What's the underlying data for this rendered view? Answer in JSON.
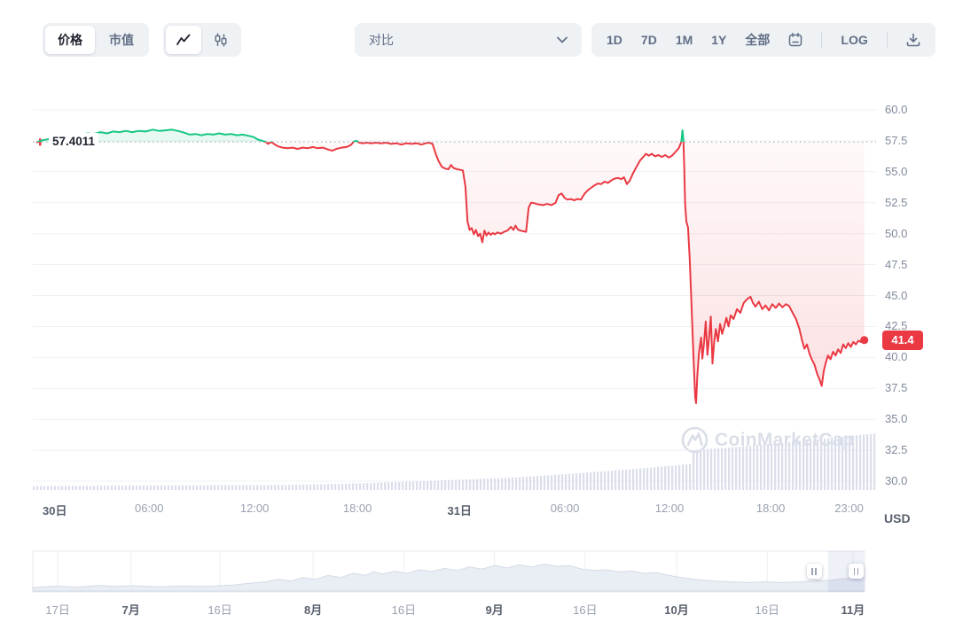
{
  "toolbar": {
    "metric_tabs": [
      {
        "label": "价格",
        "active": true
      },
      {
        "label": "市值",
        "active": false
      }
    ],
    "chart_types": [
      {
        "name": "line",
        "active": true
      },
      {
        "name": "candlestick",
        "active": false
      }
    ],
    "compare_label": "对比",
    "range_buttons": [
      "1D",
      "7D",
      "1M",
      "1Y",
      "全部"
    ],
    "log_label": "LOG"
  },
  "chart": {
    "reference_price_label": "57.4011",
    "last_price_label": "41.4",
    "unit_label": "USD",
    "watermark": "CoinMarketCap"
  },
  "chart_data": {
    "type": "line",
    "ylabel": "USD",
    "y_range": [
      30,
      60
    ],
    "y_ticks": [
      60.0,
      57.5,
      55.0,
      52.5,
      50.0,
      47.5,
      45.0,
      42.5,
      40.0,
      37.5,
      35.0,
      32.5,
      30.0
    ],
    "baseline": 57.4011,
    "last_price": 41.4,
    "grid": true,
    "x_ticks": [
      {
        "label": "30日",
        "t": 0.026,
        "bold": true
      },
      {
        "label": "06:00",
        "t": 0.138
      },
      {
        "label": "12:00",
        "t": 0.263
      },
      {
        "label": "18:00",
        "t": 0.385
      },
      {
        "label": "31日",
        "t": 0.506,
        "bold": true
      },
      {
        "label": "06:00",
        "t": 0.631
      },
      {
        "label": "12:00",
        "t": 0.755
      },
      {
        "label": "18:00",
        "t": 0.875
      },
      {
        "label": "23:00",
        "t": 0.968
      }
    ],
    "series": [
      [
        0.005,
        57.38
      ],
      [
        0.012,
        57.55
      ],
      [
        0.02,
        57.65
      ],
      [
        0.028,
        57.6
      ],
      [
        0.035,
        57.8
      ],
      [
        0.042,
        57.75
      ],
      [
        0.05,
        57.95
      ],
      [
        0.058,
        58.0
      ],
      [
        0.065,
        58.1
      ],
      [
        0.072,
        58.05
      ],
      [
        0.08,
        58.2
      ],
      [
        0.088,
        58.1
      ],
      [
        0.095,
        58.25
      ],
      [
        0.103,
        58.2
      ],
      [
        0.11,
        58.3
      ],
      [
        0.118,
        58.2
      ],
      [
        0.126,
        58.3
      ],
      [
        0.134,
        58.25
      ],
      [
        0.142,
        58.4
      ],
      [
        0.15,
        58.3
      ],
      [
        0.158,
        58.35
      ],
      [
        0.165,
        58.4
      ],
      [
        0.172,
        58.3
      ],
      [
        0.18,
        58.15
      ],
      [
        0.186,
        58.0
      ],
      [
        0.193,
        58.05
      ],
      [
        0.2,
        57.95
      ],
      [
        0.207,
        58.05
      ],
      [
        0.214,
        58.0
      ],
      [
        0.221,
        58.1
      ],
      [
        0.228,
        58.0
      ],
      [
        0.235,
        58.05
      ],
      [
        0.242,
        57.95
      ],
      [
        0.249,
        58.0
      ],
      [
        0.256,
        57.9
      ],
      [
        0.262,
        57.8
      ],
      [
        0.267,
        57.6
      ],
      [
        0.272,
        57.5
      ],
      [
        0.276,
        57.42
      ],
      [
        0.279,
        57.25
      ],
      [
        0.283,
        57.4
      ],
      [
        0.287,
        57.2
      ],
      [
        0.291,
        57.05
      ],
      [
        0.296,
        56.95
      ],
      [
        0.302,
        56.9
      ],
      [
        0.308,
        56.95
      ],
      [
        0.314,
        56.85
      ],
      [
        0.32,
        56.95
      ],
      [
        0.326,
        56.9
      ],
      [
        0.332,
        57.0
      ],
      [
        0.338,
        56.9
      ],
      [
        0.344,
        56.95
      ],
      [
        0.35,
        56.8
      ],
      [
        0.355,
        56.7
      ],
      [
        0.36,
        56.85
      ],
      [
        0.366,
        56.95
      ],
      [
        0.372,
        57.0
      ],
      [
        0.377,
        57.15
      ],
      [
        0.381,
        57.45
      ],
      [
        0.384,
        57.5
      ],
      [
        0.387,
        57.35
      ],
      [
        0.391,
        57.3
      ],
      [
        0.396,
        57.35
      ],
      [
        0.401,
        57.3
      ],
      [
        0.407,
        57.35
      ],
      [
        0.413,
        57.3
      ],
      [
        0.419,
        57.35
      ],
      [
        0.425,
        57.25
      ],
      [
        0.431,
        57.3
      ],
      [
        0.437,
        57.2
      ],
      [
        0.443,
        57.3
      ],
      [
        0.449,
        57.25
      ],
      [
        0.455,
        57.3
      ],
      [
        0.461,
        57.2
      ],
      [
        0.466,
        57.3
      ],
      [
        0.47,
        57.35
      ],
      [
        0.474,
        57.25
      ],
      [
        0.478,
        56.4
      ],
      [
        0.481,
        55.9
      ],
      [
        0.485,
        55.4
      ],
      [
        0.489,
        55.25
      ],
      [
        0.493,
        55.2
      ],
      [
        0.496,
        55.55
      ],
      [
        0.499,
        55.3
      ],
      [
        0.503,
        55.2
      ],
      [
        0.507,
        55.15
      ],
      [
        0.51,
        55.1
      ],
      [
        0.513,
        53.8
      ],
      [
        0.5155,
        51.0
      ],
      [
        0.518,
        50.3
      ],
      [
        0.5205,
        50.45
      ],
      [
        0.523,
        49.95
      ],
      [
        0.5255,
        50.3
      ],
      [
        0.528,
        49.8
      ],
      [
        0.5305,
        50.0
      ],
      [
        0.533,
        49.3
      ],
      [
        0.5355,
        50.25
      ],
      [
        0.538,
        49.85
      ],
      [
        0.5405,
        50.1
      ],
      [
        0.543,
        49.9
      ],
      [
        0.5455,
        50.05
      ],
      [
        0.548,
        49.95
      ],
      [
        0.551,
        50.1
      ],
      [
        0.555,
        50.0
      ],
      [
        0.559,
        50.15
      ],
      [
        0.563,
        50.25
      ],
      [
        0.567,
        50.55
      ],
      [
        0.57,
        50.3
      ],
      [
        0.5725,
        50.65
      ],
      [
        0.575,
        50.35
      ],
      [
        0.578,
        50.25
      ],
      [
        0.5815,
        50.2
      ],
      [
        0.585,
        50.15
      ],
      [
        0.588,
        52.1
      ],
      [
        0.591,
        52.5
      ],
      [
        0.595,
        52.45
      ],
      [
        0.6,
        52.35
      ],
      [
        0.605,
        52.3
      ],
      [
        0.61,
        52.4
      ],
      [
        0.615,
        52.3
      ],
      [
        0.62,
        52.5
      ],
      [
        0.6235,
        53.1
      ],
      [
        0.627,
        53.25
      ],
      [
        0.6305,
        52.9
      ],
      [
        0.634,
        52.75
      ],
      [
        0.638,
        52.8
      ],
      [
        0.642,
        52.7
      ],
      [
        0.646,
        52.8
      ],
      [
        0.65,
        52.75
      ],
      [
        0.654,
        53.2
      ],
      [
        0.658,
        53.5
      ],
      [
        0.662,
        53.7
      ],
      [
        0.666,
        53.9
      ],
      [
        0.67,
        54.05
      ],
      [
        0.674,
        54.0
      ],
      [
        0.678,
        54.2
      ],
      [
        0.682,
        54.1
      ],
      [
        0.686,
        54.3
      ],
      [
        0.69,
        54.45
      ],
      [
        0.694,
        54.5
      ],
      [
        0.698,
        54.4
      ],
      [
        0.701,
        54.55
      ],
      [
        0.7045,
        54.0
      ],
      [
        0.708,
        54.3
      ],
      [
        0.712,
        54.9
      ],
      [
        0.716,
        55.4
      ],
      [
        0.72,
        55.9
      ],
      [
        0.724,
        56.2
      ],
      [
        0.727,
        56.45
      ],
      [
        0.7305,
        56.3
      ],
      [
        0.734,
        56.45
      ],
      [
        0.738,
        56.25
      ],
      [
        0.742,
        56.35
      ],
      [
        0.746,
        56.2
      ],
      [
        0.75,
        56.35
      ],
      [
        0.754,
        56.15
      ],
      [
        0.758,
        56.3
      ],
      [
        0.762,
        56.6
      ],
      [
        0.766,
        56.9
      ],
      [
        0.769,
        57.4
      ],
      [
        0.7705,
        58.35
      ],
      [
        0.7715,
        57.6
      ],
      [
        0.7725,
        55.5
      ],
      [
        0.7735,
        52.5
      ],
      [
        0.775,
        51.0
      ],
      [
        0.777,
        50.5
      ],
      [
        0.779,
        48.0
      ],
      [
        0.781,
        44.5
      ],
      [
        0.7835,
        40.0
      ],
      [
        0.7855,
        36.8
      ],
      [
        0.7865,
        36.3
      ],
      [
        0.788,
        38.5
      ],
      [
        0.79,
        40.4
      ],
      [
        0.7925,
        41.6
      ],
      [
        0.794,
        39.9
      ],
      [
        0.796,
        41.2
      ],
      [
        0.798,
        42.9
      ],
      [
        0.8,
        40.2
      ],
      [
        0.802,
        41.6
      ],
      [
        0.804,
        43.3
      ],
      [
        0.806,
        39.5
      ],
      [
        0.808,
        41.2
      ],
      [
        0.81,
        42.3
      ],
      [
        0.8125,
        41.3
      ],
      [
        0.815,
        42.7
      ],
      [
        0.8175,
        41.9
      ],
      [
        0.82,
        42.5
      ],
      [
        0.8225,
        43.2
      ],
      [
        0.825,
        42.5
      ],
      [
        0.8275,
        43.4
      ],
      [
        0.831,
        43.1
      ],
      [
        0.835,
        43.9
      ],
      [
        0.839,
        43.6
      ],
      [
        0.843,
        44.4
      ],
      [
        0.847,
        44.7
      ],
      [
        0.851,
        44.9
      ],
      [
        0.854,
        44.4
      ],
      [
        0.857,
        44.1
      ],
      [
        0.861,
        44.5
      ],
      [
        0.865,
        43.9
      ],
      [
        0.869,
        44.2
      ],
      [
        0.873,
        43.8
      ],
      [
        0.877,
        44.3
      ],
      [
        0.881,
        44.0
      ],
      [
        0.885,
        44.35
      ],
      [
        0.889,
        44.05
      ],
      [
        0.893,
        44.3
      ],
      [
        0.897,
        44.15
      ],
      [
        0.901,
        43.6
      ],
      [
        0.905,
        43.1
      ],
      [
        0.909,
        42.3
      ],
      [
        0.9125,
        41.3
      ],
      [
        0.915,
        40.7
      ],
      [
        0.918,
        41.05
      ],
      [
        0.921,
        40.3
      ],
      [
        0.924,
        39.8
      ],
      [
        0.927,
        39.4
      ],
      [
        0.93,
        38.7
      ],
      [
        0.933,
        38.2
      ],
      [
        0.9355,
        37.7
      ],
      [
        0.938,
        38.9
      ],
      [
        0.9405,
        39.6
      ],
      [
        0.943,
        40.15
      ],
      [
        0.946,
        39.85
      ],
      [
        0.949,
        40.45
      ],
      [
        0.952,
        40.15
      ],
      [
        0.955,
        40.65
      ],
      [
        0.958,
        40.35
      ],
      [
        0.961,
        41.05
      ],
      [
        0.964,
        40.75
      ],
      [
        0.967,
        41.15
      ],
      [
        0.97,
        40.85
      ],
      [
        0.973,
        41.25
      ],
      [
        0.976,
        41.05
      ],
      [
        0.979,
        41.35
      ],
      [
        0.982,
        41.25
      ],
      [
        0.986,
        41.4
      ]
    ],
    "volume_profile": [
      [
        0,
        0.07
      ],
      [
        0.15,
        0.08
      ],
      [
        0.3,
        0.09
      ],
      [
        0.34,
        0.1
      ],
      [
        0.45,
        0.15
      ],
      [
        0.57,
        0.22
      ],
      [
        0.65,
        0.3
      ],
      [
        0.72,
        0.38
      ],
      [
        0.779,
        0.46
      ],
      [
        0.782,
        0.7
      ],
      [
        0.85,
        0.78
      ],
      [
        0.92,
        0.88
      ],
      [
        1,
        1.0
      ]
    ],
    "minimap": {
      "series": [
        [
          0,
          0.1
        ],
        [
          0.03,
          0.14
        ],
        [
          0.05,
          0.11
        ],
        [
          0.08,
          0.16
        ],
        [
          0.1,
          0.13
        ],
        [
          0.12,
          0.15
        ],
        [
          0.15,
          0.12
        ],
        [
          0.18,
          0.14
        ],
        [
          0.21,
          0.13
        ],
        [
          0.24,
          0.17
        ],
        [
          0.26,
          0.22
        ],
        [
          0.28,
          0.26
        ],
        [
          0.295,
          0.33
        ],
        [
          0.31,
          0.28
        ],
        [
          0.325,
          0.38
        ],
        [
          0.34,
          0.33
        ],
        [
          0.355,
          0.44
        ],
        [
          0.37,
          0.38
        ],
        [
          0.385,
          0.5
        ],
        [
          0.4,
          0.44
        ],
        [
          0.41,
          0.55
        ],
        [
          0.42,
          0.48
        ],
        [
          0.435,
          0.56
        ],
        [
          0.45,
          0.5
        ],
        [
          0.465,
          0.6
        ],
        [
          0.48,
          0.55
        ],
        [
          0.495,
          0.64
        ],
        [
          0.51,
          0.58
        ],
        [
          0.525,
          0.68
        ],
        [
          0.54,
          0.62
        ],
        [
          0.555,
          0.72
        ],
        [
          0.57,
          0.65
        ],
        [
          0.585,
          0.74
        ],
        [
          0.6,
          0.68
        ],
        [
          0.615,
          0.76
        ],
        [
          0.63,
          0.7
        ],
        [
          0.645,
          0.72
        ],
        [
          0.66,
          0.62
        ],
        [
          0.675,
          0.58
        ],
        [
          0.69,
          0.6
        ],
        [
          0.705,
          0.54
        ],
        [
          0.72,
          0.57
        ],
        [
          0.735,
          0.5
        ],
        [
          0.75,
          0.52
        ],
        [
          0.765,
          0.44
        ],
        [
          0.78,
          0.38
        ],
        [
          0.8,
          0.32
        ],
        [
          0.82,
          0.28
        ],
        [
          0.84,
          0.26
        ],
        [
          0.86,
          0.24
        ],
        [
          0.88,
          0.26
        ],
        [
          0.9,
          0.24
        ],
        [
          0.92,
          0.26
        ],
        [
          0.94,
          0.28
        ],
        [
          0.96,
          0.31
        ],
        [
          0.98,
          0.36
        ],
        [
          1,
          0.4
        ]
      ],
      "selection": {
        "start": 0.956,
        "end": 0.999
      },
      "x_ticks": [
        {
          "label": "17日",
          "t": 0.03
        },
        {
          "label": "7月",
          "t": 0.118,
          "bold": true
        },
        {
          "label": "16日",
          "t": 0.225
        },
        {
          "label": "8月",
          "t": 0.337,
          "bold": true
        },
        {
          "label": "16日",
          "t": 0.446
        },
        {
          "label": "9月",
          "t": 0.555,
          "bold": true
        },
        {
          "label": "16日",
          "t": 0.664
        },
        {
          "label": "10月",
          "t": 0.774,
          "bold": true
        },
        {
          "label": "16日",
          "t": 0.883
        },
        {
          "label": "11月",
          "t": 0.986,
          "bold": true
        }
      ]
    }
  },
  "colors": {
    "up": "#16c784",
    "down": "#ea3943",
    "badge": "#ea3943",
    "volume": "#dbdfec"
  }
}
